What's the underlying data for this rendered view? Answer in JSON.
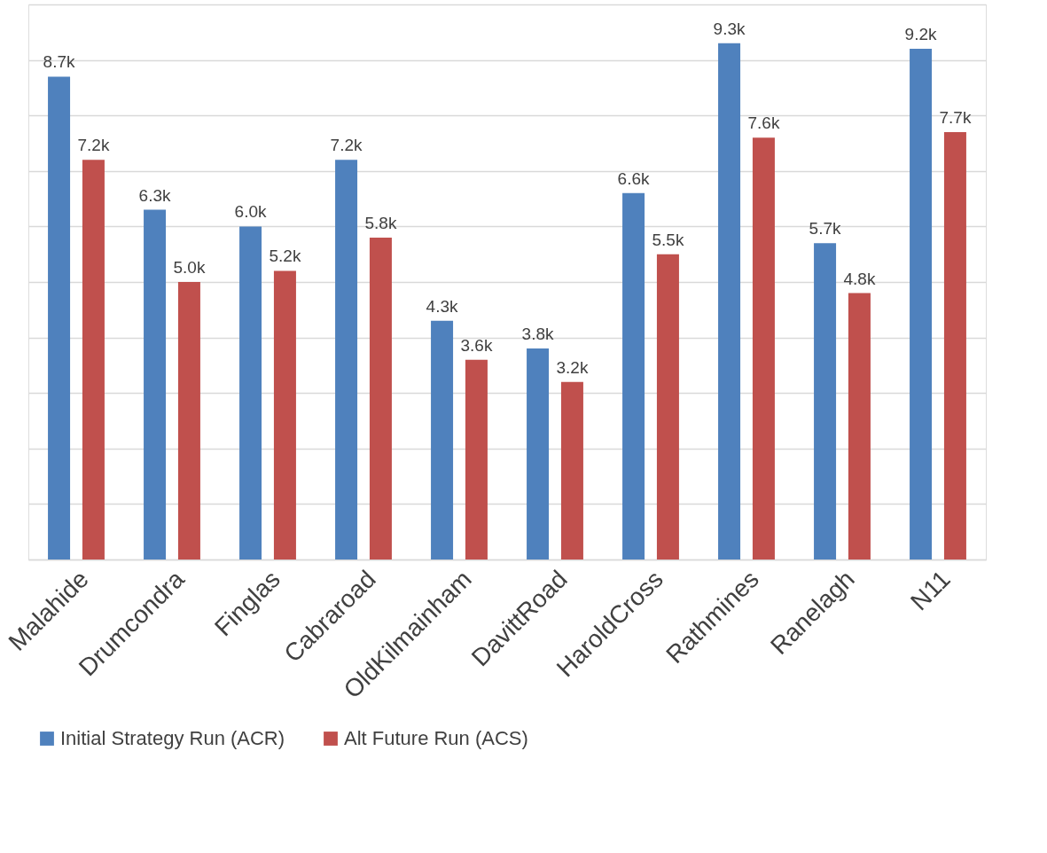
{
  "chart_data": {
    "type": "bar",
    "categories": [
      "Malahide",
      "Drumcondra",
      "Finglas",
      "Cabraroad",
      "OldKilmainham",
      "DavittRoad",
      "HaroldCross",
      "Rathmines",
      "Ranelagh",
      "N11"
    ],
    "series": [
      {
        "name": "Initial Strategy Run (ACR)",
        "color": "#4f81bd",
        "values": [
          8700,
          6300,
          6000,
          7200,
          4300,
          3800,
          6600,
          9300,
          5700,
          9200
        ],
        "value_labels": [
          "8.7k",
          "6.3k",
          "6.0k",
          "7.2k",
          "4.3k",
          "3.8k",
          "6.6k",
          "9.3k",
          "5.7k",
          "9.2k"
        ]
      },
      {
        "name": "Alt Future Run (ACS)",
        "color": "#c0504d",
        "values": [
          7200,
          5000,
          5200,
          5800,
          3600,
          3200,
          5500,
          7600,
          4800,
          7700
        ],
        "value_labels": [
          "7.2k",
          "5.0k",
          "5.2k",
          "5.8k",
          "3.6k",
          "3.2k",
          "5.5k",
          "7.6k",
          "4.8k",
          "7.7k"
        ]
      }
    ],
    "ylim": [
      0,
      10000
    ],
    "yticks": [
      {
        "value": 0,
        "label": null
      },
      {
        "value": 1000,
        "label": null
      },
      {
        "value": 2000,
        "label": null
      },
      {
        "value": 3000,
        "label": null
      },
      {
        "value": 4000,
        "label": null
      },
      {
        "value": 5000,
        "label": null
      },
      {
        "value": 6000,
        "label": null
      },
      {
        "value": 7000,
        "label": null
      },
      {
        "value": 8000,
        "label": null
      },
      {
        "value": 9000,
        "label": null
      },
      {
        "value": 10000,
        "label": null
      }
    ],
    "tick_labels": "x",
    "grid": "y",
    "legend": "bottom"
  }
}
